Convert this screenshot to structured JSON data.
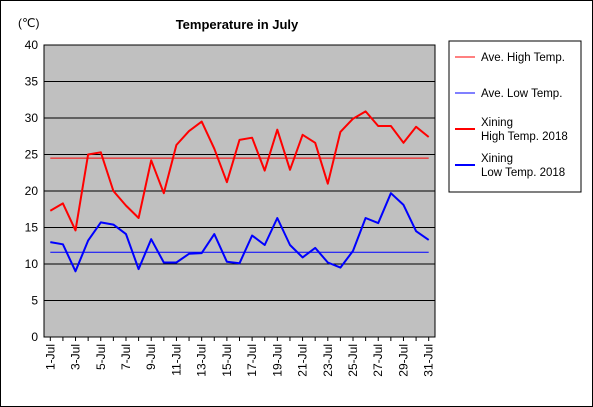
{
  "chart_data": {
    "type": "line",
    "title": "Temperature in July",
    "ylabel": "(℃)",
    "xlabel": "",
    "ylim": [
      0,
      40
    ],
    "yticks": [
      0,
      5,
      10,
      15,
      20,
      25,
      30,
      35,
      40
    ],
    "grid": true,
    "legend_placement": "right",
    "categories": [
      "1-Jul",
      "2-Jul",
      "3-Jul",
      "4-Jul",
      "5-Jul",
      "6-Jul",
      "7-Jul",
      "8-Jul",
      "9-Jul",
      "10-Jul",
      "11-Jul",
      "12-Jul",
      "13-Jul",
      "14-Jul",
      "15-Jul",
      "16-Jul",
      "17-Jul",
      "18-Jul",
      "19-Jul",
      "20-Jul",
      "21-Jul",
      "22-Jul",
      "23-Jul",
      "24-Jul",
      "25-Jul",
      "26-Jul",
      "27-Jul",
      "28-Jul",
      "29-Jul",
      "30-Jul",
      "31-Jul"
    ],
    "tick_labels": [
      "1-Jul",
      "3-Jul",
      "5-Jul",
      "7-Jul",
      "9-Jul",
      "11-Jul",
      "13-Jul",
      "15-Jul",
      "17-Jul",
      "19-Jul",
      "21-Jul",
      "23-Jul",
      "25-Jul",
      "27-Jul",
      "29-Jul",
      "31-Jul"
    ],
    "series": [
      {
        "name": "Ave. High Temp.",
        "color": "#ff0000",
        "width": 1,
        "values": [
          24.5,
          24.5,
          24.5,
          24.5,
          24.5,
          24.5,
          24.5,
          24.5,
          24.5,
          24.5,
          24.5,
          24.5,
          24.5,
          24.5,
          24.5,
          24.5,
          24.5,
          24.5,
          24.5,
          24.5,
          24.5,
          24.5,
          24.5,
          24.5,
          24.5,
          24.5,
          24.5,
          24.5,
          24.5,
          24.5,
          24.5
        ]
      },
      {
        "name": "Ave. Low Temp.",
        "color": "#0000ff",
        "width": 1,
        "values": [
          11.6,
          11.6,
          11.6,
          11.6,
          11.6,
          11.6,
          11.6,
          11.6,
          11.6,
          11.6,
          11.6,
          11.6,
          11.6,
          11.6,
          11.6,
          11.6,
          11.6,
          11.6,
          11.6,
          11.6,
          11.6,
          11.6,
          11.6,
          11.6,
          11.6,
          11.6,
          11.6,
          11.6,
          11.6,
          11.6,
          11.6
        ]
      },
      {
        "name": "Xining High Temp. 2018",
        "color": "#ff0000",
        "width": 2,
        "values": [
          17.3,
          18.3,
          14.6,
          25.0,
          25.3,
          20.0,
          18.0,
          16.3,
          24.2,
          19.7,
          26.3,
          28.2,
          29.5,
          25.8,
          21.2,
          27.0,
          27.3,
          22.8,
          28.4,
          22.9,
          27.7,
          26.6,
          21.0,
          28.1,
          29.9,
          30.9,
          28.9,
          28.9,
          26.6,
          28.8,
          27.4
        ]
      },
      {
        "name": "Xining Low Temp. 2018",
        "color": "#0000ff",
        "width": 2,
        "values": [
          13.0,
          12.7,
          9.0,
          13.2,
          15.7,
          15.4,
          14.1,
          9.3,
          13.4,
          10.2,
          10.2,
          11.4,
          11.5,
          14.1,
          10.3,
          10.1,
          13.9,
          12.6,
          16.3,
          12.6,
          10.9,
          12.2,
          10.2,
          9.5,
          11.8,
          16.3,
          15.6,
          19.7,
          18.1,
          14.5,
          13.3
        ]
      }
    ]
  },
  "legend": [
    {
      "lines": [
        "Ave. High Temp."
      ]
    },
    {
      "lines": [
        "Ave. Low Temp."
      ]
    },
    {
      "lines": [
        "Xining",
        "High Temp. 2018"
      ]
    },
    {
      "lines": [
        "Xining",
        "Low Temp. 2018"
      ]
    }
  ]
}
